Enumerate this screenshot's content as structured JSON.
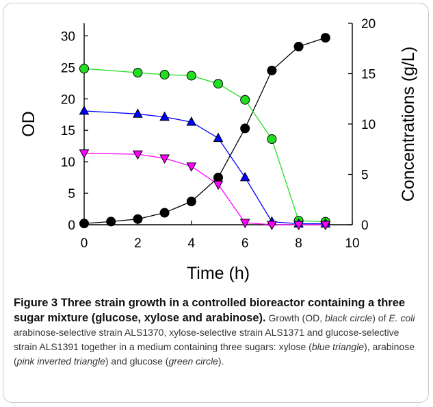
{
  "chart_data": {
    "type": "line",
    "xlabel": "Time (h)",
    "ylabel_left": "OD",
    "ylabel_right": "Concentrations (g/L)",
    "xlim": [
      0,
      10
    ],
    "ylim_left": [
      0,
      32
    ],
    "ylim_right": [
      0,
      20
    ],
    "x_ticks": [
      0,
      2,
      4,
      6,
      8,
      10
    ],
    "y_left_ticks": [
      0,
      5,
      10,
      15,
      20,
      25,
      30
    ],
    "y_right_ticks": [
      0,
      5,
      10,
      15,
      20
    ],
    "grid": false,
    "series": [
      {
        "axis": "left",
        "marker": "circle",
        "color": "#000000",
        "x": [
          0,
          1,
          2,
          3,
          4,
          5,
          6,
          7,
          8,
          9
        ],
        "y": [
          0.2,
          0.5,
          0.9,
          1.9,
          3.7,
          7.5,
          15.3,
          24.5,
          28.3,
          29.7
        ]
      },
      {
        "axis": "right",
        "marker": "circle",
        "color": "#22dd22",
        "x": [
          0,
          2,
          3,
          4,
          5,
          6,
          7,
          8,
          9
        ],
        "y": [
          15.5,
          15.1,
          14.9,
          14.8,
          14.0,
          12.4,
          8.5,
          0.4,
          0.3
        ]
      },
      {
        "axis": "right",
        "marker": "triangle",
        "color": "#0000ff",
        "x": [
          0,
          2,
          3,
          4,
          5,
          6,
          7,
          8,
          9
        ],
        "y": [
          11.3,
          11.0,
          10.7,
          10.2,
          8.6,
          4.7,
          0.3,
          0.1,
          0.1
        ]
      },
      {
        "axis": "right",
        "marker": "triangle-down",
        "color": "#ff00ff",
        "x": [
          0,
          2,
          3,
          4,
          5,
          6,
          7,
          8,
          9
        ],
        "y": [
          7.1,
          7.0,
          6.6,
          5.8,
          4.0,
          0.2,
          0.0,
          0.0,
          0.0
        ]
      }
    ]
  },
  "caption": {
    "title": "Figure 3 Three strain growth in a controlled bioreactor containing a three sugar mixture (glucose, xylose and arabinose).",
    "parts": [
      {
        "t": " Growth (OD, ",
        "i": false
      },
      {
        "t": "black circle",
        "i": true
      },
      {
        "t": ") of ",
        "i": false
      },
      {
        "t": "E. coli",
        "i": true
      },
      {
        "t": " arabinose-selective strain ALS1370, xylose-selective strain ALS1371 and glucose-selective strain ALS1391 together in a medium containing three sugars: xylose (",
        "i": false
      },
      {
        "t": "blue triangle",
        "i": true
      },
      {
        "t": "), arabinose (",
        "i": false
      },
      {
        "t": "pink inverted triangle",
        "i": true
      },
      {
        "t": ") and glucose (",
        "i": false
      },
      {
        "t": "green circle",
        "i": true
      },
      {
        "t": ").",
        "i": false
      }
    ]
  }
}
